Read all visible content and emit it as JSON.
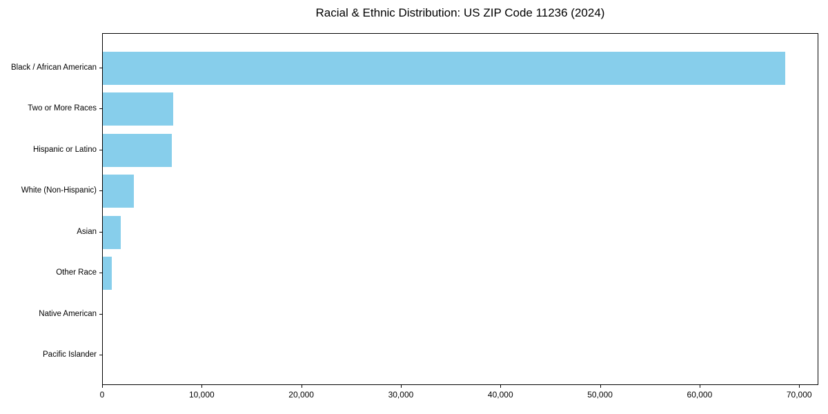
{
  "title": "Racial & Ethnic Distribution: US ZIP Code 11236 (2024)",
  "chart_data": {
    "type": "bar",
    "orientation": "horizontal",
    "title": "Racial & Ethnic Distribution: US ZIP Code 11236 (2024)",
    "xlabel": "",
    "ylabel": "",
    "categories": [
      "Black / African American",
      "Two or More Races",
      "Hispanic or Latino",
      "White (Non-Hispanic)",
      "Asian",
      "Other Race",
      "Native American",
      "Pacific Islander"
    ],
    "values": [
      68500,
      7100,
      6900,
      3100,
      1800,
      900,
      0,
      0
    ],
    "xlim": [
      0,
      71925
    ],
    "x_ticks": [
      0,
      10000,
      20000,
      30000,
      40000,
      50000,
      60000,
      70000
    ],
    "x_tick_labels": [
      "0",
      "10,000",
      "20,000",
      "30,000",
      "40,000",
      "50,000",
      "60,000",
      "70,000"
    ],
    "grid": false,
    "legend": null,
    "frame": true,
    "bar_color": "#87CEEB",
    "axis_color": "#000000",
    "background_color": "#ffffff"
  }
}
